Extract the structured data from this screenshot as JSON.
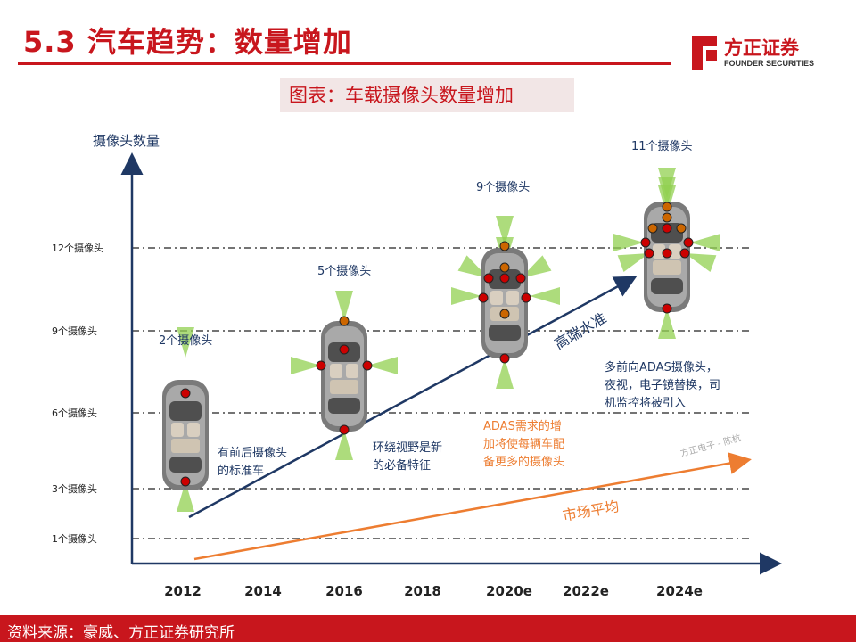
{
  "header": {
    "title": "5.3 汽车趋势：数量增加",
    "brand_cn": "方正证券",
    "brand_en": "FOUNDER SECURITIES"
  },
  "subtitle": "图表：车载摄像头数量增加",
  "footer": {
    "source": "资料来源：豪威、方正证券研究所"
  },
  "colors": {
    "brand": "#c8161d",
    "high_end": "#1f3864",
    "market": "#ed7d31",
    "camera_field": "#92d050"
  },
  "diagram": {
    "y_axis_title": "摄像头数量",
    "y_levels": [
      "12个摄像头",
      "9个摄像头",
      "6个摄像头",
      "3个摄像头",
      "1个摄像头"
    ],
    "x_labels": [
      "2012",
      "2014",
      "2016",
      "2018",
      "2020e",
      "2022e",
      "2024e"
    ],
    "cars": [
      {
        "label": "2个摄像头",
        "cameras": 2
      },
      {
        "label": "5个摄像头",
        "cameras": 5
      },
      {
        "label": "9个摄像头",
        "cameras": 9
      },
      {
        "label": "11个摄像头",
        "cameras": 11
      }
    ],
    "trend_high_end": "高端水准",
    "trend_market": "市场平均",
    "notes": {
      "standard_1": "有前后摄像头",
      "standard_2": "的标准车",
      "surround_1": "环绕视野是新",
      "surround_2": "的必备特征",
      "adas_1": "ADAS需求的增",
      "adas_2": "加将使每辆车配",
      "adas_3": "备更多的摄像头",
      "future_1": "多前向ADAS摄像头，",
      "future_2": "夜视，电子镜替换，司",
      "future_3": "机监控将被引入"
    },
    "watermark": "方正电子 - 陈杭"
  }
}
